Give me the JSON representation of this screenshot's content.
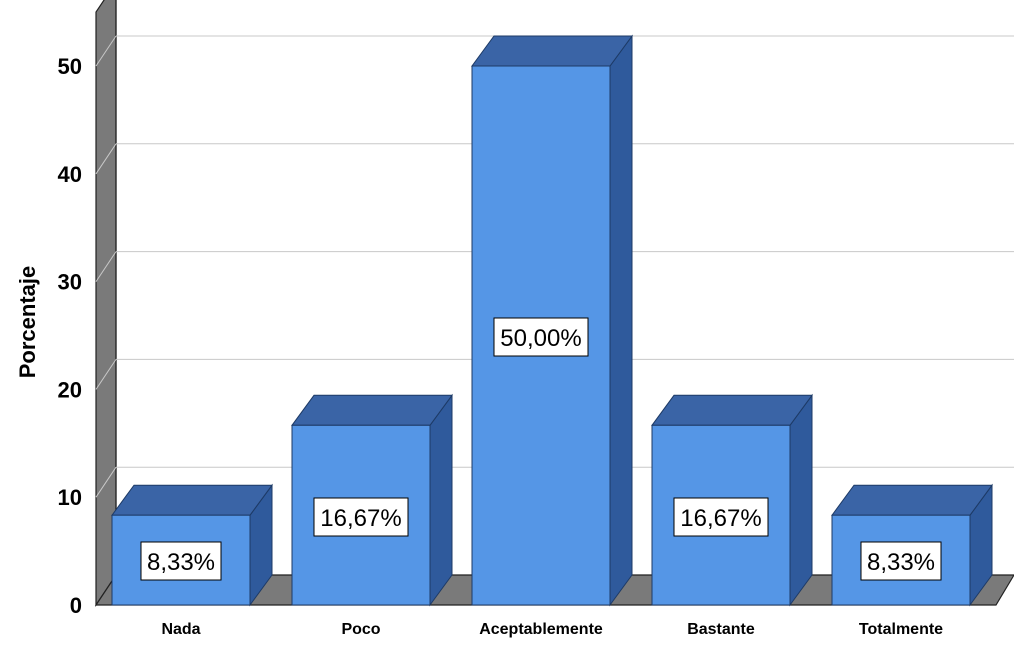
{
  "chart_data": {
    "type": "bar",
    "categories": [
      "Nada",
      "Poco",
      "Aceptablemente",
      "Bastante",
      "Totalmente"
    ],
    "values": [
      8.33,
      16.67,
      50.0,
      16.67,
      8.33
    ],
    "data_labels": [
      "8,33%",
      "16,67%",
      "50,00%",
      "16,67%",
      "8,33%"
    ],
    "title": "",
    "xlabel": "",
    "ylabel": "Porcentaje",
    "ylim": [
      0,
      55
    ],
    "yticks": [
      0,
      10,
      20,
      30,
      40,
      50
    ],
    "ytick_labels": [
      "0",
      "10",
      "20",
      "30",
      "40",
      "50"
    ],
    "grid": true,
    "style": "3d",
    "bar_color": "#5596e6"
  }
}
